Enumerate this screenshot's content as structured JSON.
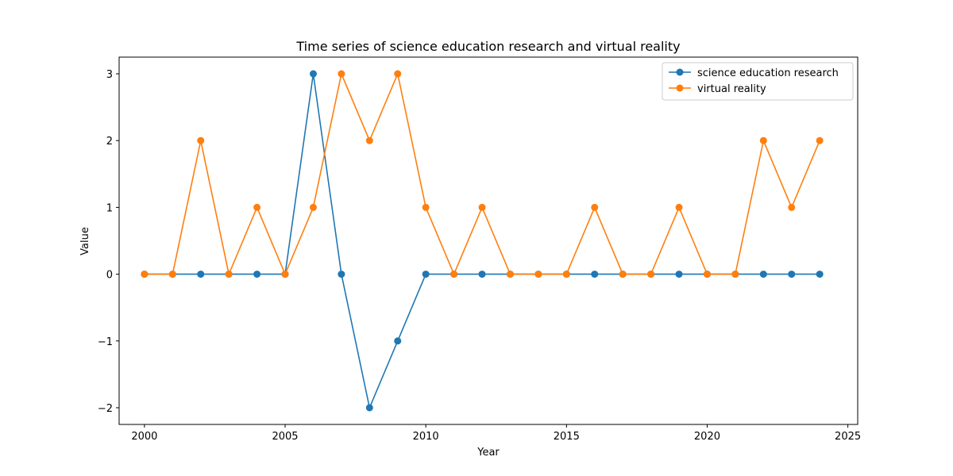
{
  "chart_data": {
    "type": "line",
    "title": "Time series of science education research and virtual reality",
    "xlabel": "Year",
    "ylabel": "Value",
    "x": [
      2000,
      2001,
      2002,
      2003,
      2004,
      2005,
      2006,
      2007,
      2008,
      2009,
      2010,
      2011,
      2012,
      2013,
      2014,
      2015,
      2016,
      2017,
      2018,
      2019,
      2020,
      2021,
      2022,
      2023,
      2024
    ],
    "xlim": [
      1999.1,
      2025.35
    ],
    "ylim": [
      -2.25,
      3.25
    ],
    "xticks": [
      2000,
      2005,
      2010,
      2015,
      2020,
      2025
    ],
    "yticks": [
      -2,
      -1,
      0,
      1,
      2,
      3
    ],
    "xtick_labels": [
      "2000",
      "2005",
      "2010",
      "2015",
      "2020",
      "2025"
    ],
    "ytick_labels": [
      "−2",
      "−1",
      "0",
      "1",
      "2",
      "3"
    ],
    "grid": false,
    "legend_position": "top-right",
    "series": [
      {
        "name": "science education research",
        "color": "#1f77b4",
        "values": [
          0,
          0,
          0,
          0,
          0,
          0,
          3,
          0,
          -2,
          -1,
          0,
          0,
          0,
          0,
          0,
          0,
          0,
          0,
          0,
          0,
          0,
          0,
          0,
          0,
          0
        ]
      },
      {
        "name": "virtual reality",
        "color": "#ff7f0e",
        "values": [
          0,
          0,
          2,
          0,
          1,
          0,
          1,
          3,
          2,
          3,
          1,
          0,
          1,
          0,
          0,
          0,
          1,
          0,
          0,
          1,
          0,
          0,
          2,
          1,
          2
        ]
      }
    ]
  }
}
